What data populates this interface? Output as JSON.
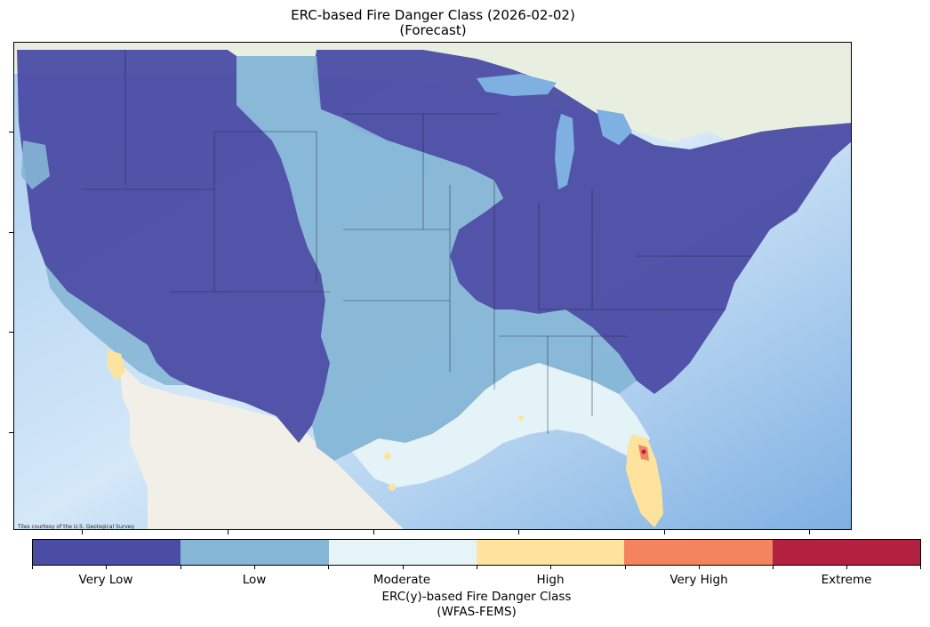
{
  "title": {
    "line1": "ERC-based Fire Danger Class (2026-02-02)",
    "line2": "(Forecast)"
  },
  "map": {
    "attribution": "Tiles courtesy of the U.S. Geological Survey",
    "land_color": "#f2f0ea",
    "ocean_color": "#cfe3f3"
  },
  "legend": {
    "title_line1": "ERC(y)-based Fire Danger Class",
    "title_line2": "(WFAS-FEMS)",
    "classes": [
      {
        "label": "Very Low",
        "color": "#4b4ca4"
      },
      {
        "label": "Low",
        "color": "#86b6d6"
      },
      {
        "label": "Moderate",
        "color": "#e6f4f7"
      },
      {
        "label": "High",
        "color": "#fde39e"
      },
      {
        "label": "Very High",
        "color": "#f4845f"
      },
      {
        "label": "Extreme",
        "color": "#b2213f"
      }
    ]
  }
}
